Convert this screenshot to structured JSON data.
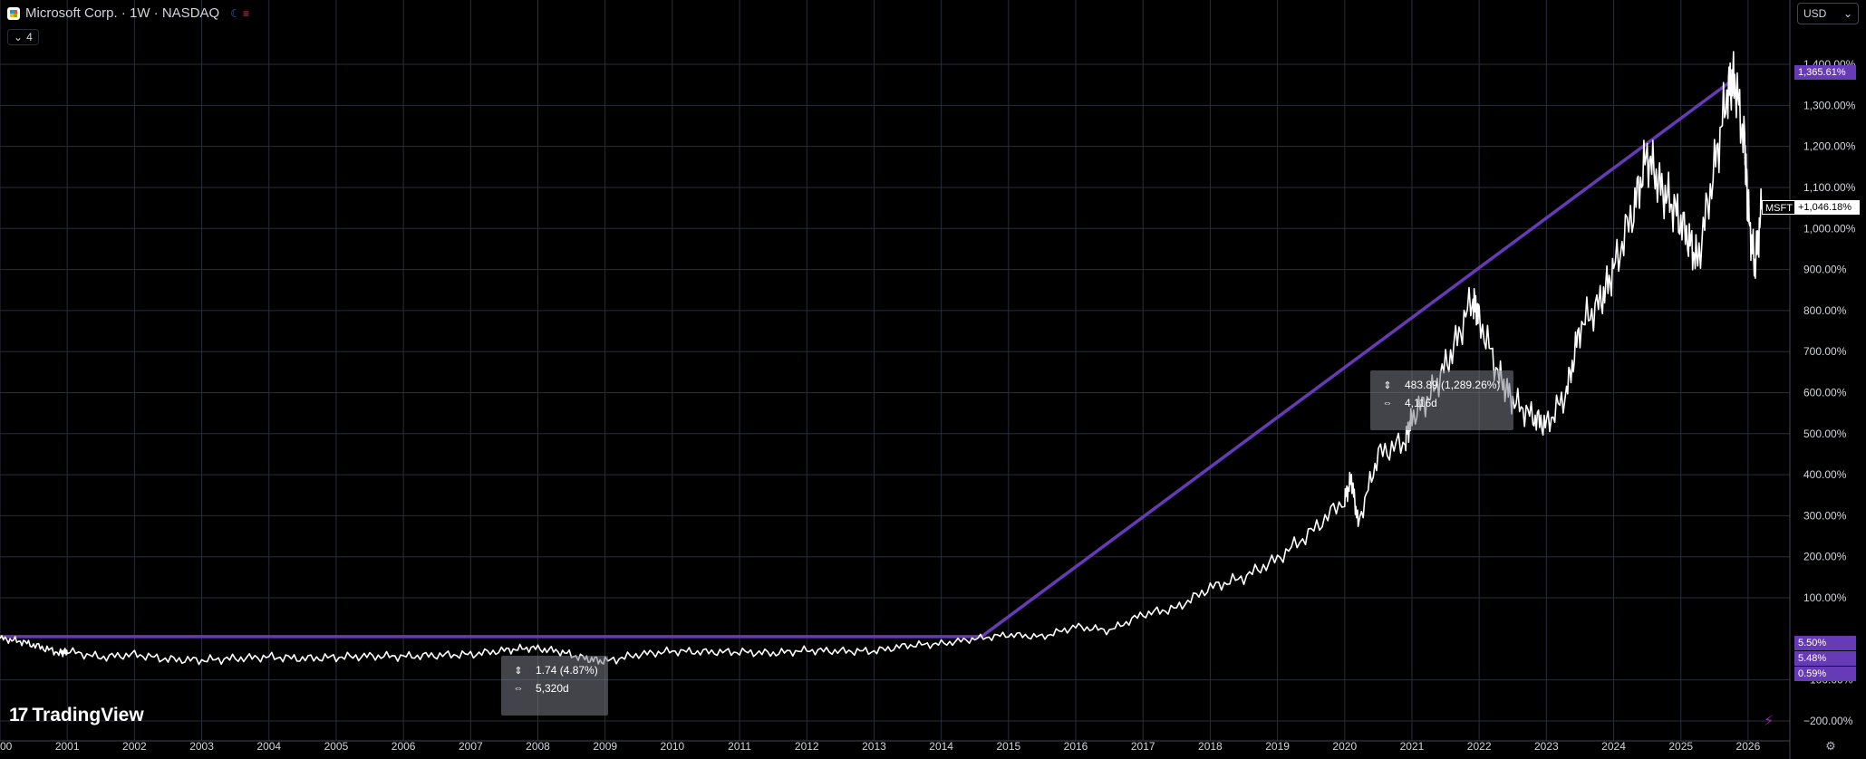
{
  "header": {
    "title": "Microsoft Corp. · 1W · NASDAQ",
    "indicator_count": "4"
  },
  "currency": {
    "label": "USD"
  },
  "brand": {
    "name": "TradingView"
  },
  "colors": {
    "background": "#000000",
    "line": "#ffffff",
    "trend": "#673ab7",
    "grid": "#2a2e39"
  },
  "measurements": [
    {
      "change": "1.74 (4.87%)",
      "duration": "5,320d"
    },
    {
      "change": "483.89 (1,289.26%)",
      "duration": "4,116d"
    }
  ],
  "price_tags": {
    "trend_top": "1,365.61%",
    "current_symbol": "MSFT",
    "current": "+1,046.18%",
    "low_1": "5.50%",
    "low_2": "5.48%",
    "low_3": "0.59%"
  },
  "chart_data": {
    "type": "line",
    "title": "Microsoft Corp. · 1W · NASDAQ",
    "y_scale": "percent",
    "ylim": [
      -220,
      1420
    ],
    "y_ticks": [
      "−200.00%",
      "−100.00%",
      "100.00%",
      "200.00%",
      "300.00%",
      "400.00%",
      "500.00%",
      "600.00%",
      "700.00%",
      "800.00%",
      "900.00%",
      "1,000.00%",
      "1,100.00%",
      "1,200.00%",
      "1,300.00%",
      "1,400.00%"
    ],
    "y_tick_values": [
      -200,
      -100,
      100,
      200,
      300,
      400,
      500,
      600,
      700,
      800,
      900,
      1000,
      1100,
      1200,
      1300,
      1400
    ],
    "x_ticks": [
      "00",
      "2001",
      "2002",
      "2003",
      "2004",
      "2005",
      "2006",
      "2007",
      "2008",
      "2009",
      "2010",
      "2011",
      "2012",
      "2013",
      "2014",
      "2015",
      "2016",
      "2017",
      "2018",
      "2019",
      "2020",
      "2021",
      "2022",
      "2023",
      "2024",
      "2025",
      "2026"
    ],
    "x_tick_values": [
      2000,
      2001,
      2002,
      2003,
      2004,
      2005,
      2006,
      2007,
      2008,
      2009,
      2010,
      2011,
      2012,
      2013,
      2014,
      2015,
      2016,
      2017,
      2018,
      2019,
      2020,
      2021,
      2022,
      2023,
      2024,
      2025,
      2026
    ],
    "xlim": [
      2000.0,
      2026.5
    ],
    "grid": true,
    "series": [
      {
        "x": [
          2000.0,
          2000.3,
          2000.6,
          2000.9,
          2001.0,
          2001.5,
          2002.0,
          2002.5,
          2003.0,
          2003.5,
          2004.0,
          2004.5,
          2005.0,
          2005.5,
          2006.0,
          2006.5,
          2007.0,
          2007.5,
          2007.9,
          2008.3,
          2008.7,
          2009.0,
          2009.5,
          2010.0,
          2010.5,
          2011.0,
          2011.5,
          2012.0,
          2012.5,
          2013.0,
          2013.5,
          2014.0,
          2014.5,
          2015.0,
          2015.5,
          2016.0,
          2016.5,
          2017.0,
          2017.5,
          2018.0,
          2018.5,
          2019.0,
          2019.5,
          2020.0,
          2020.1,
          2020.2,
          2020.5,
          2020.9,
          2021.0,
          2021.3,
          2021.6,
          2021.9,
          2022.0,
          2022.3,
          2022.5,
          2022.8,
          2023.0,
          2023.3,
          2023.5,
          2023.8,
          2024.0,
          2024.3,
          2024.5,
          2024.7,
          2024.9,
          2025.1,
          2025.25,
          2025.5,
          2025.7,
          2025.8,
          2025.95,
          2026.0,
          2026.1,
          2026.2
        ],
        "values": [
          1,
          -6,
          -20,
          -35,
          -30,
          -45,
          -38,
          -50,
          -52,
          -48,
          -44,
          -48,
          -45,
          -42,
          -43,
          -40,
          -38,
          -28,
          -22,
          -30,
          -48,
          -55,
          -38,
          -30,
          -32,
          -32,
          -35,
          -28,
          -30,
          -30,
          -16,
          -12,
          0,
          10,
          5,
          30,
          20,
          60,
          75,
          125,
          150,
          195,
          260,
          340,
          390,
          280,
          450,
          480,
          540,
          600,
          700,
          830,
          780,
          640,
          580,
          540,
          520,
          600,
          760,
          820,
          900,
          1050,
          1180,
          1100,
          1050,
          980,
          920,
          1150,
          1340,
          1365,
          1200,
          1040,
          910,
          1046
        ]
      }
    ],
    "trend_lines": [
      {
        "x": [
          2000.0,
          2014.6
        ],
        "values": [
          5.5,
          5.5
        ]
      },
      {
        "x": [
          2014.6,
          2025.8
        ],
        "values": [
          5.5,
          1365.61
        ]
      }
    ]
  }
}
